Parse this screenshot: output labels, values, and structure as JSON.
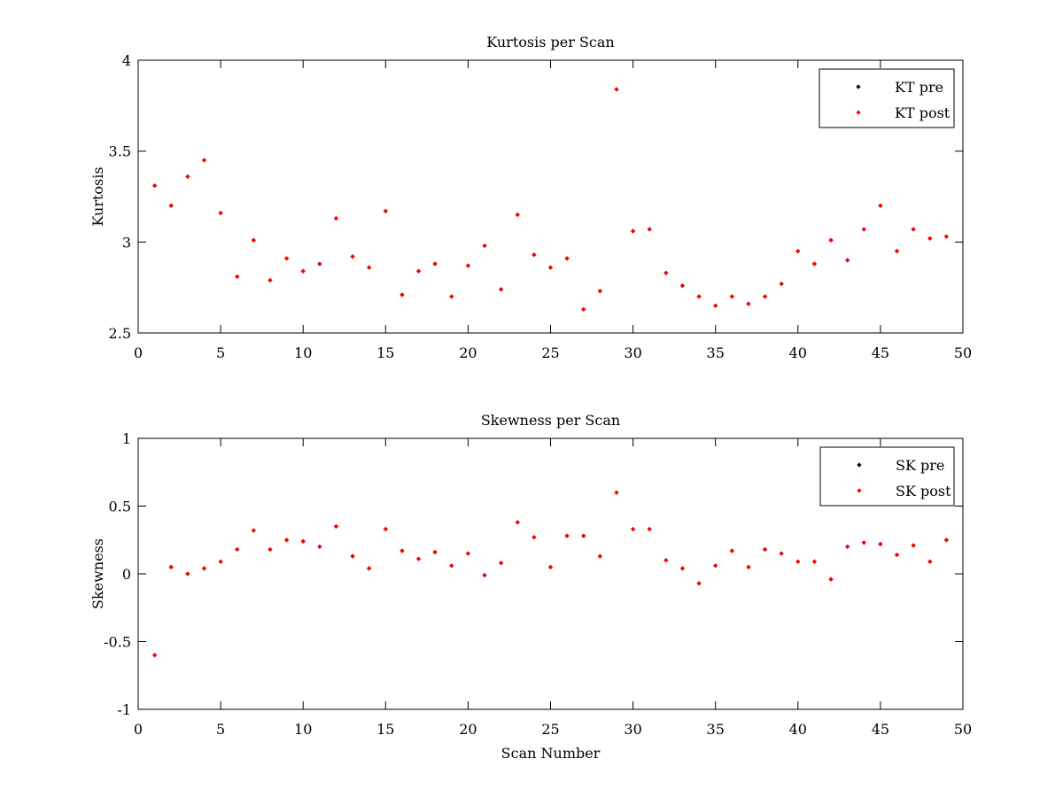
{
  "colors": {
    "background": "#ffffff",
    "axes": "#000000",
    "pre_marker": "#000000",
    "post_marker": "#ff0000"
  },
  "chart_data": [
    {
      "type": "scatter",
      "title": "Kurtosis per Scan",
      "xlabel": "",
      "ylabel": "Kurtosis",
      "xlim": [
        0,
        50
      ],
      "ylim": [
        2.5,
        4
      ],
      "xticks": [
        "0",
        "5",
        "10",
        "15",
        "20",
        "25",
        "30",
        "35",
        "40",
        "45",
        "50"
      ],
      "yticks": [
        "2.5",
        "3",
        "3.5",
        "4"
      ],
      "grid": false,
      "legend_position": "top-right",
      "legend": [
        "KT pre",
        "KT post"
      ],
      "x": [
        1,
        2,
        3,
        4,
        5,
        6,
        7,
        8,
        9,
        10,
        11,
        12,
        13,
        14,
        15,
        16,
        17,
        18,
        19,
        20,
        21,
        22,
        23,
        24,
        25,
        26,
        27,
        28,
        29,
        30,
        31,
        32,
        33,
        34,
        35,
        36,
        37,
        38,
        39,
        40,
        41,
        42,
        43,
        44,
        45,
        46,
        47,
        48,
        49
      ],
      "series": [
        {
          "name": "KT pre",
          "color": "#000000",
          "values": [
            3.31,
            3.2,
            3.36,
            3.45,
            3.16,
            2.81,
            3.01,
            2.79,
            2.91,
            2.84,
            2.88,
            3.13,
            2.92,
            2.86,
            3.17,
            2.71,
            2.84,
            2.88,
            2.7,
            2.87,
            2.98,
            2.74,
            3.15,
            2.93,
            2.86,
            2.91,
            2.63,
            2.73,
            3.84,
            3.06,
            3.07,
            2.83,
            2.76,
            2.7,
            2.65,
            2.7,
            2.66,
            2.7,
            2.77,
            2.95,
            2.88,
            3.01,
            2.9,
            3.07,
            3.2,
            2.95,
            3.07,
            3.02,
            3.03
          ]
        },
        {
          "name": "KT post",
          "color": "#ff0000",
          "values": [
            3.31,
            3.2,
            3.36,
            3.45,
            3.16,
            2.81,
            3.01,
            2.79,
            2.91,
            2.84,
            2.88,
            3.13,
            2.92,
            2.86,
            3.17,
            2.71,
            2.84,
            2.88,
            2.7,
            2.87,
            2.98,
            2.74,
            3.15,
            2.93,
            2.86,
            2.91,
            2.63,
            2.73,
            3.84,
            3.06,
            3.07,
            2.83,
            2.76,
            2.7,
            2.65,
            2.7,
            2.66,
            2.7,
            2.77,
            2.95,
            2.88,
            3.01,
            2.9,
            3.07,
            3.2,
            2.95,
            3.07,
            3.02,
            3.03
          ]
        }
      ]
    },
    {
      "type": "scatter",
      "title": "Skewness per Scan",
      "xlabel": "Scan Number",
      "ylabel": "Skewness",
      "xlim": [
        0,
        50
      ],
      "ylim": [
        -1,
        1
      ],
      "xticks": [
        "0",
        "5",
        "10",
        "15",
        "20",
        "25",
        "30",
        "35",
        "40",
        "45",
        "50"
      ],
      "yticks": [
        "-1",
        "-0.5",
        "0",
        "0.5",
        "1"
      ],
      "grid": false,
      "legend_position": "top-right",
      "legend": [
        "SK pre",
        "SK post"
      ],
      "x": [
        1,
        2,
        3,
        4,
        5,
        6,
        7,
        8,
        9,
        10,
        11,
        12,
        13,
        14,
        15,
        16,
        17,
        18,
        19,
        20,
        21,
        22,
        23,
        24,
        25,
        26,
        27,
        28,
        29,
        30,
        31,
        32,
        33,
        34,
        35,
        36,
        37,
        38,
        39,
        40,
        41,
        42,
        43,
        44,
        45,
        46,
        47,
        48,
        49
      ],
      "series": [
        {
          "name": "SK pre",
          "color": "#000000",
          "values": [
            -0.6,
            0.05,
            0.0,
            0.04,
            0.09,
            0.18,
            0.32,
            0.18,
            0.25,
            0.24,
            0.2,
            0.35,
            0.13,
            0.04,
            0.33,
            0.17,
            0.11,
            0.16,
            0.06,
            0.15,
            -0.01,
            0.08,
            0.38,
            0.27,
            0.05,
            0.28,
            0.28,
            0.13,
            0.6,
            0.33,
            0.33,
            0.1,
            0.04,
            -0.07,
            0.06,
            0.17,
            0.05,
            0.18,
            0.15,
            0.09,
            0.09,
            -0.04,
            0.2,
            0.23,
            0.22,
            0.14,
            0.21,
            0.09,
            0.25
          ]
        },
        {
          "name": "SK post",
          "color": "#ff0000",
          "values": [
            -0.6,
            0.05,
            0.0,
            0.04,
            0.09,
            0.18,
            0.32,
            0.18,
            0.25,
            0.24,
            0.2,
            0.35,
            0.13,
            0.04,
            0.33,
            0.17,
            0.11,
            0.16,
            0.06,
            0.15,
            -0.01,
            0.08,
            0.38,
            0.27,
            0.05,
            0.28,
            0.28,
            0.13,
            0.6,
            0.33,
            0.33,
            0.1,
            0.04,
            -0.07,
            0.06,
            0.17,
            0.05,
            0.18,
            0.15,
            0.09,
            0.09,
            -0.04,
            0.2,
            0.23,
            0.22,
            0.14,
            0.21,
            0.09,
            0.25
          ]
        }
      ]
    }
  ]
}
